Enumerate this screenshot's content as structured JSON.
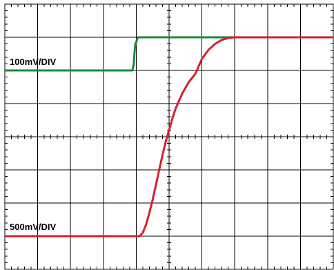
{
  "chart_data": {
    "type": "line",
    "grid": true,
    "divisions": {
      "x": 10,
      "y": 8
    },
    "xlim": [
      0,
      10
    ],
    "ylim": [
      0,
      8
    ],
    "series": [
      {
        "name": "100mV/DIV",
        "color": "#1a8a3a",
        "x": [
          0,
          3.88,
          3.92,
          3.95,
          3.97,
          4.0,
          4.03,
          4.06,
          4.08,
          4.1,
          10
        ],
        "y": [
          6.0,
          6.0,
          6.15,
          6.55,
          6.8,
          6.85,
          6.95,
          7.0,
          7.0,
          7.0,
          7.0
        ]
      },
      {
        "name": "500mV/DIV",
        "color": "#d81e2e",
        "x": [
          0,
          4.1,
          4.2,
          4.3,
          4.4,
          4.5,
          4.6,
          4.7,
          4.8,
          4.9,
          5.0,
          5.1,
          5.2,
          5.4,
          5.6,
          5.8,
          6.0,
          6.2,
          6.4,
          6.6,
          6.8,
          7.0,
          7.2,
          10
        ],
        "y": [
          1.0,
          1.0,
          1.1,
          1.35,
          1.7,
          2.1,
          2.55,
          3.0,
          3.45,
          3.85,
          4.2,
          4.55,
          4.85,
          5.3,
          5.65,
          5.9,
          6.35,
          6.62,
          6.8,
          6.92,
          6.98,
          7.0,
          7.0,
          7.0
        ]
      }
    ],
    "annotations": [
      "100mV/DIV",
      "500mV/DIV"
    ]
  }
}
